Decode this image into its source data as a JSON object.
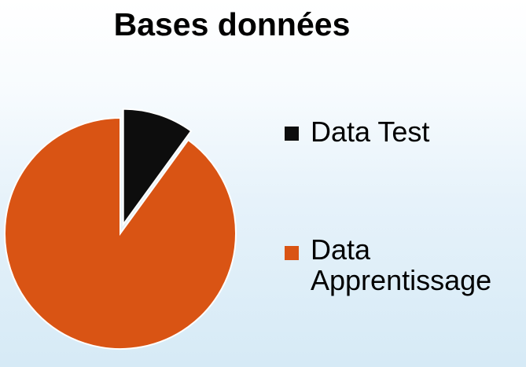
{
  "title": "Bases données",
  "chart_data": {
    "type": "pie",
    "title": "Bases données",
    "categories": [
      "Data Test",
      "Data Apprentissage"
    ],
    "values": [
      10,
      90
    ],
    "colors": [
      "#0d0d0d",
      "#d95414"
    ],
    "legend_position": "right",
    "exploded": "Data Test"
  }
}
